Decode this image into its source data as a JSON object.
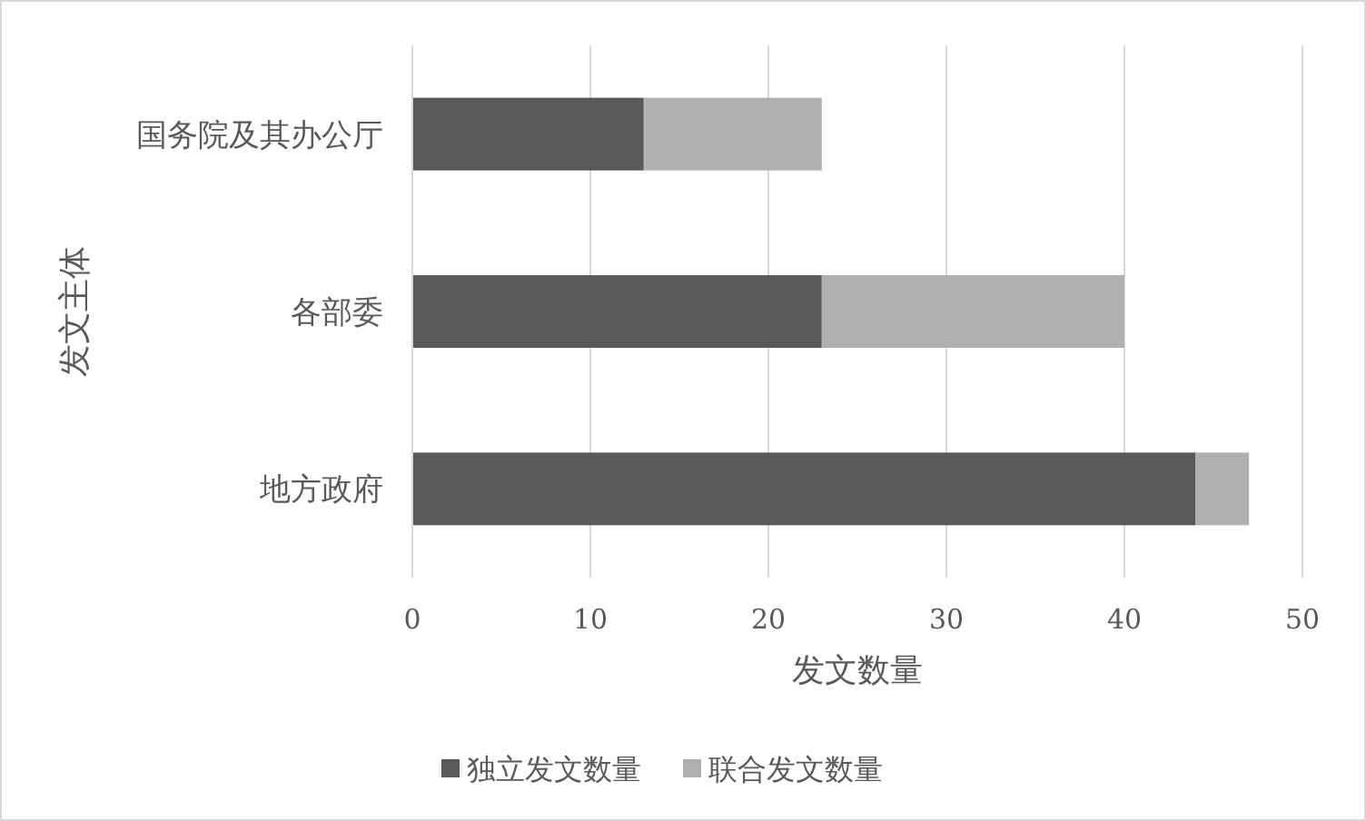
{
  "chart_data": {
    "type": "bar",
    "orientation": "horizontal",
    "stacked": true,
    "categories": [
      "国务院及其办公厅",
      "各部委",
      "地方政府"
    ],
    "series": [
      {
        "name": "独立发文数量",
        "color": "#595959",
        "values": [
          13,
          23,
          44
        ]
      },
      {
        "name": "联合发文数量",
        "color": "#b0b0b0",
        "values": [
          10,
          17,
          3
        ]
      }
    ],
    "xlim": [
      0,
      50
    ],
    "xticks": [
      0,
      10,
      20,
      30,
      40,
      50
    ],
    "xlabel": "发文数量",
    "ylabel": "发文主体",
    "grid": "x",
    "legend": "bottom"
  }
}
